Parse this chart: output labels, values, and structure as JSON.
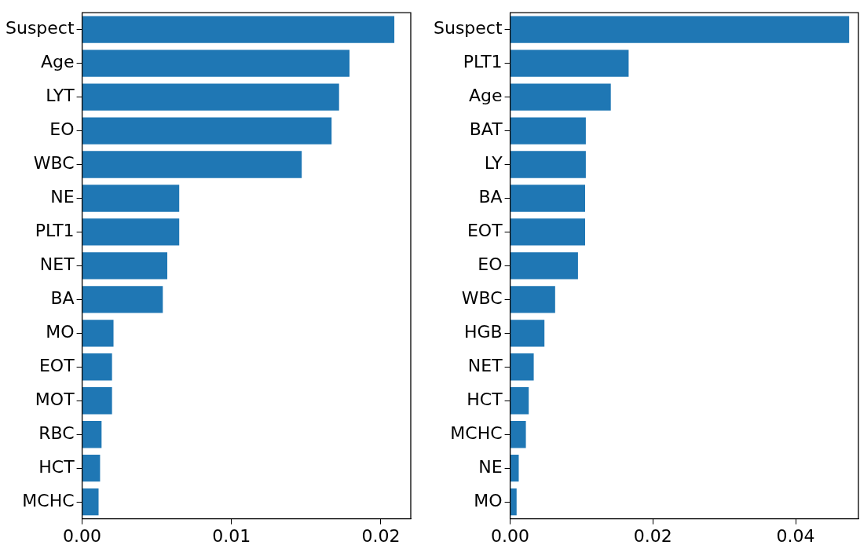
{
  "chart_data": [
    {
      "type": "bar",
      "orientation": "horizontal",
      "categories": [
        "Suspect",
        "Age",
        "LYT",
        "EO",
        "WBC",
        "NE",
        "PLT1",
        "NET",
        "BA",
        "MO",
        "EOT",
        "MOT",
        "RBC",
        "HCT",
        "MCHC"
      ],
      "values": [
        0.0209,
        0.0179,
        0.0172,
        0.0167,
        0.0147,
        0.0065,
        0.0065,
        0.0057,
        0.0054,
        0.0021,
        0.002,
        0.002,
        0.0013,
        0.0012,
        0.0011
      ],
      "color": "#1f77b4",
      "xlim": [
        0,
        0.022
      ],
      "xticks": [
        {
          "value": 0,
          "label": "0.00"
        },
        {
          "value": 0.01,
          "label": "0.01"
        },
        {
          "value": 0.02,
          "label": "0.02"
        }
      ],
      "grid": false,
      "legend": false
    },
    {
      "type": "bar",
      "orientation": "horizontal",
      "categories": [
        "Suspect",
        "PLT1",
        "Age",
        "BAT",
        "LY",
        "BA",
        "EOT",
        "EO",
        "WBC",
        "HGB",
        "NET",
        "HCT",
        "MCHC",
        "NE",
        "MO"
      ],
      "values": [
        0.0475,
        0.0166,
        0.0141,
        0.0106,
        0.0106,
        0.0105,
        0.0105,
        0.0095,
        0.0063,
        0.0048,
        0.0033,
        0.0026,
        0.0022,
        0.0012,
        0.0009
      ],
      "color": "#1f77b4",
      "xlim": [
        0,
        0.0488
      ],
      "xticks": [
        {
          "value": 0,
          "label": "0.00"
        },
        {
          "value": 0.02,
          "label": "0.02"
        },
        {
          "value": 0.04,
          "label": "0.04"
        }
      ],
      "grid": false,
      "legend": false
    }
  ]
}
